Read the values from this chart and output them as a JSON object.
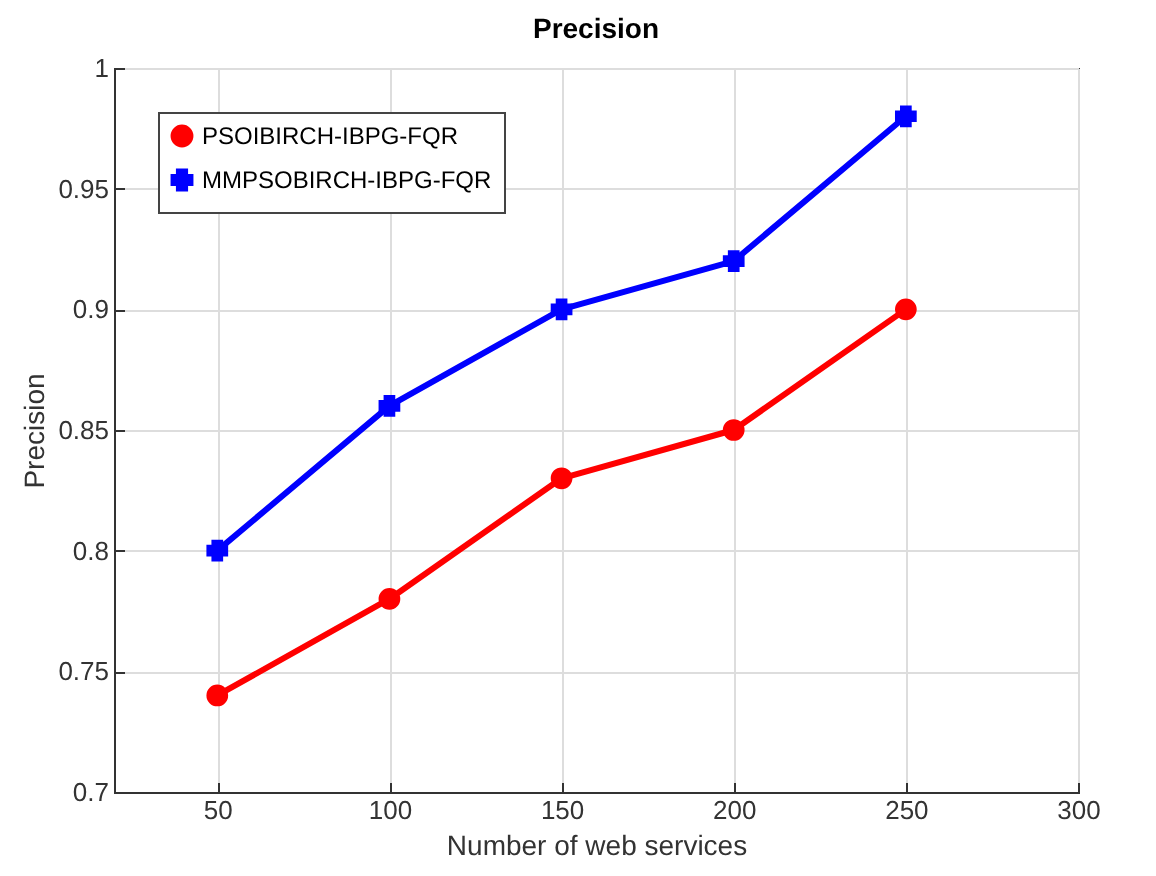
{
  "chart_data": {
    "type": "line",
    "title": "Precision",
    "xlabel": "Number of web services",
    "ylabel": "Precision",
    "x": [
      50,
      100,
      150,
      200,
      250
    ],
    "series": [
      {
        "name": "PSOIBIRCH-IBPG-FQR",
        "color": "#ff0000",
        "marker": "circle",
        "values": [
          0.74,
          0.78,
          0.83,
          0.85,
          0.9
        ]
      },
      {
        "name": "MMPSOBIRCH-IBPG-FQR",
        "color": "#0000ff",
        "marker": "cross",
        "values": [
          0.8,
          0.86,
          0.9,
          0.92,
          0.98
        ]
      }
    ],
    "xlim": [
      20,
      300
    ],
    "xticks": [
      50,
      100,
      150,
      200,
      250,
      300
    ],
    "ylim": [
      0.7,
      1
    ],
    "yticks": [
      0.7,
      0.75,
      0.8,
      0.85,
      0.9,
      0.95,
      1
    ],
    "grid": true,
    "legend": "top left",
    "line_style": "solid"
  }
}
